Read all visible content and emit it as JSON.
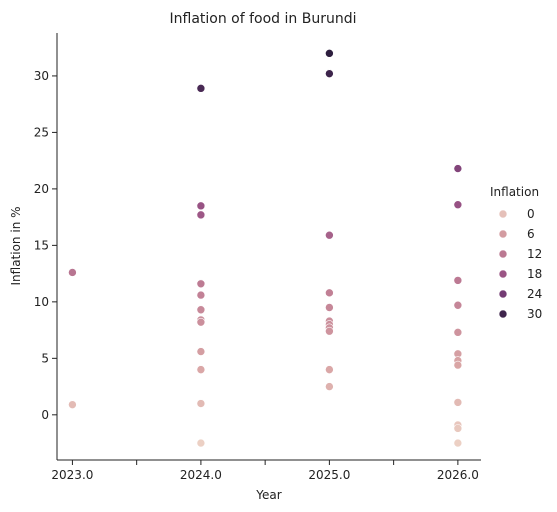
{
  "chart_data": {
    "type": "scatter",
    "title": "Inflation of food in Burundi",
    "xlabel": "Year",
    "ylabel": "Inflation in %",
    "xlim": [
      2022.88,
      2026.18
    ],
    "ylim": [
      -4.0,
      33.8
    ],
    "x_ticks": [
      2023.0,
      2024.0,
      2025.0,
      2026.0
    ],
    "x_tick_labels": [
      "2023.0",
      "2024.0",
      "2025.0",
      "2026.0"
    ],
    "x_minor_ticks": [
      2023.5,
      2024.5,
      2025.5
    ],
    "y_ticks": [
      0,
      5,
      10,
      15,
      20,
      25,
      30
    ],
    "y_tick_labels": [
      "0",
      "5",
      "10",
      "15",
      "20",
      "25",
      "30"
    ],
    "hue_name": "Inflation",
    "legend_title": "Inflation",
    "legend_position": "right",
    "legend_entries": [
      {
        "label": "0",
        "value": 0
      },
      {
        "label": "6",
        "value": 6
      },
      {
        "label": "12",
        "value": 12
      },
      {
        "label": "18",
        "value": 18
      },
      {
        "label": "24",
        "value": 24
      },
      {
        "label": "30",
        "value": 30
      }
    ],
    "grid": false,
    "color_scale": {
      "min": -2.5,
      "max": 32.0,
      "stops": [
        "#ecd0c4",
        "#d9a5a5",
        "#bf7d94",
        "#9a5485",
        "#6c3670",
        "#2d1e3e"
      ]
    },
    "points": [
      {
        "x": 2023.0,
        "y": 12.6
      },
      {
        "x": 2023.0,
        "y": 0.9
      },
      {
        "x": 2024.0,
        "y": 28.9
      },
      {
        "x": 2024.0,
        "y": 18.5
      },
      {
        "x": 2024.0,
        "y": 17.7
      },
      {
        "x": 2024.0,
        "y": 11.6
      },
      {
        "x": 2024.0,
        "y": 10.6
      },
      {
        "x": 2024.0,
        "y": 9.3
      },
      {
        "x": 2024.0,
        "y": 8.4
      },
      {
        "x": 2024.0,
        "y": 8.2
      },
      {
        "x": 2024.0,
        "y": 5.6
      },
      {
        "x": 2024.0,
        "y": 4.0
      },
      {
        "x": 2024.0,
        "y": 1.0
      },
      {
        "x": 2024.0,
        "y": -2.5
      },
      {
        "x": 2025.0,
        "y": 32.0
      },
      {
        "x": 2025.0,
        "y": 30.2
      },
      {
        "x": 2025.0,
        "y": 15.9
      },
      {
        "x": 2025.0,
        "y": 10.8
      },
      {
        "x": 2025.0,
        "y": 9.5
      },
      {
        "x": 2025.0,
        "y": 8.3
      },
      {
        "x": 2025.0,
        "y": 8.0
      },
      {
        "x": 2025.0,
        "y": 7.7
      },
      {
        "x": 2025.0,
        "y": 7.4
      },
      {
        "x": 2025.0,
        "y": 4.0
      },
      {
        "x": 2025.0,
        "y": 2.5
      },
      {
        "x": 2026.0,
        "y": 21.8
      },
      {
        "x": 2026.0,
        "y": 18.6
      },
      {
        "x": 2026.0,
        "y": 11.9
      },
      {
        "x": 2026.0,
        "y": 9.7
      },
      {
        "x": 2026.0,
        "y": 7.3
      },
      {
        "x": 2026.0,
        "y": 5.4
      },
      {
        "x": 2026.0,
        "y": 4.8
      },
      {
        "x": 2026.0,
        "y": 4.4
      },
      {
        "x": 2026.0,
        "y": 1.1
      },
      {
        "x": 2026.0,
        "y": -0.9
      },
      {
        "x": 2026.0,
        "y": -1.2
      },
      {
        "x": 2026.0,
        "y": -2.5
      }
    ]
  }
}
